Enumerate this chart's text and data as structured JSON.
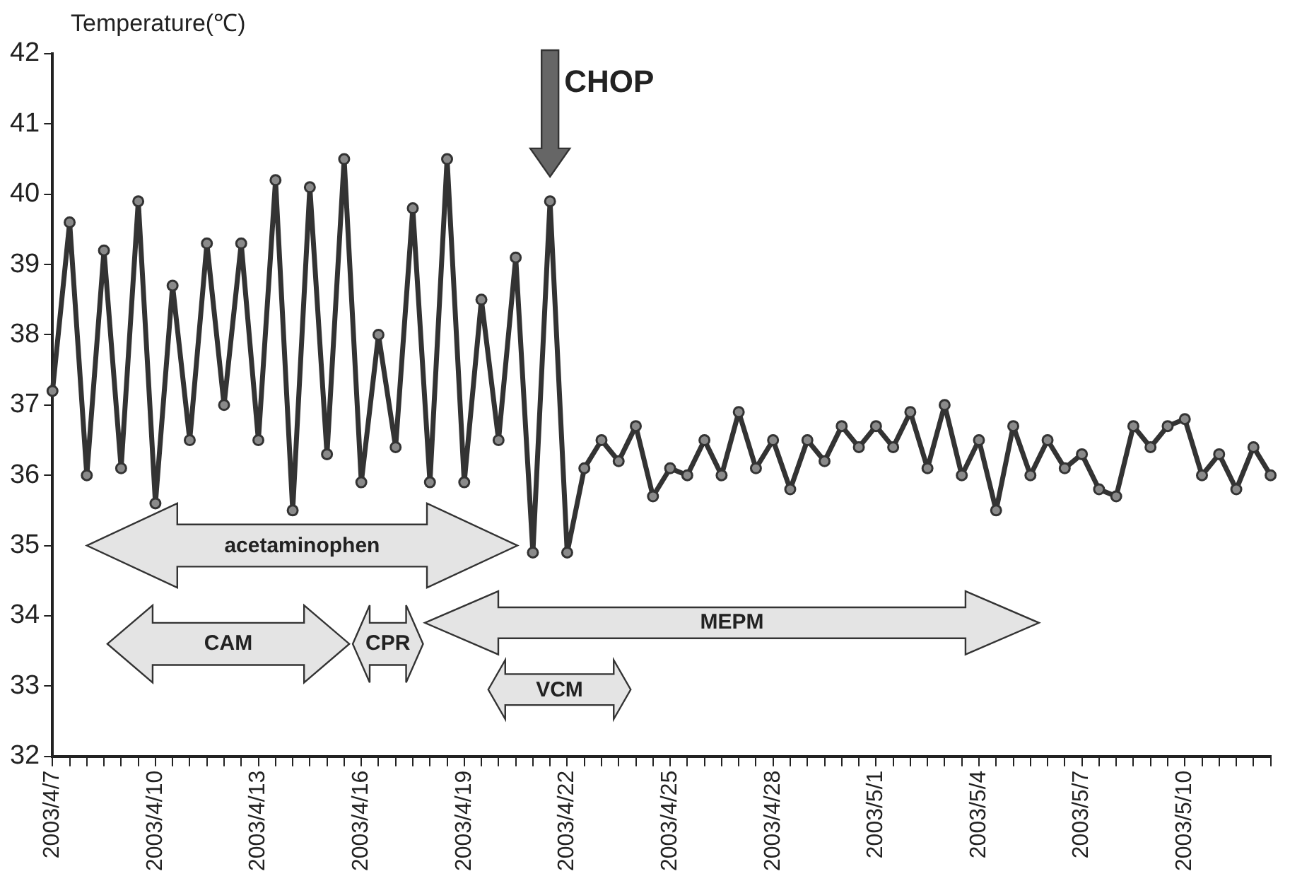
{
  "chart_data": {
    "type": "line",
    "ylabel": "Temperature(℃)",
    "categories": [
      "2003/4/7",
      null,
      null,
      null,
      null,
      null,
      "2003/4/10",
      null,
      null,
      null,
      null,
      null,
      "2003/4/13",
      null,
      null,
      null,
      null,
      null,
      "2003/4/16",
      null,
      null,
      null,
      null,
      null,
      "2003/4/19",
      null,
      null,
      null,
      null,
      null,
      "2003/4/22",
      null,
      null,
      null,
      null,
      null,
      "2003/4/25",
      null,
      null,
      null,
      null,
      null,
      "2003/4/28",
      null,
      null,
      null,
      null,
      null,
      "2003/5/1",
      null,
      null,
      null,
      null,
      null,
      "2003/5/4",
      null,
      null,
      null,
      null,
      null,
      "2003/5/7",
      null,
      null,
      null,
      null,
      null,
      "2003/5/10",
      null,
      null,
      null,
      null,
      null
    ],
    "series": [
      {
        "color": "#333333",
        "values": [
          37.2,
          39.6,
          36.0,
          39.2,
          36.1,
          39.9,
          35.6,
          38.7,
          36.5,
          39.3,
          37.0,
          39.3,
          36.5,
          40.2,
          35.5,
          40.1,
          36.3,
          40.5,
          35.9,
          38.0,
          36.4,
          39.8,
          35.9,
          40.5,
          35.9,
          38.5,
          36.5,
          39.1,
          34.9,
          39.9,
          34.9,
          36.1,
          36.5,
          36.2,
          36.7,
          35.7,
          36.1,
          36.0,
          36.5,
          36.0,
          36.9,
          36.1,
          36.5,
          35.8,
          36.5,
          36.2,
          36.7,
          36.4,
          36.7,
          36.4,
          36.9,
          36.1,
          37.0,
          36.0,
          36.5,
          35.5,
          36.7,
          36.0,
          36.5,
          36.1,
          36.3,
          35.8,
          35.7,
          36.7,
          36.4,
          36.7,
          36.8,
          36.0,
          36.3,
          35.8,
          36.4,
          36.0
        ]
      }
    ],
    "ylim": [
      32,
      42
    ],
    "yticks": [
      32,
      33,
      34,
      35,
      36,
      37,
      38,
      39,
      40,
      41,
      42
    ],
    "grid": false,
    "legend": false,
    "marker": "circle",
    "line_style": "solid",
    "annotations": [
      "CHOP",
      "acetaminophen",
      "CAM",
      "CPR",
      "MEPM",
      "VCM"
    ]
  }
}
